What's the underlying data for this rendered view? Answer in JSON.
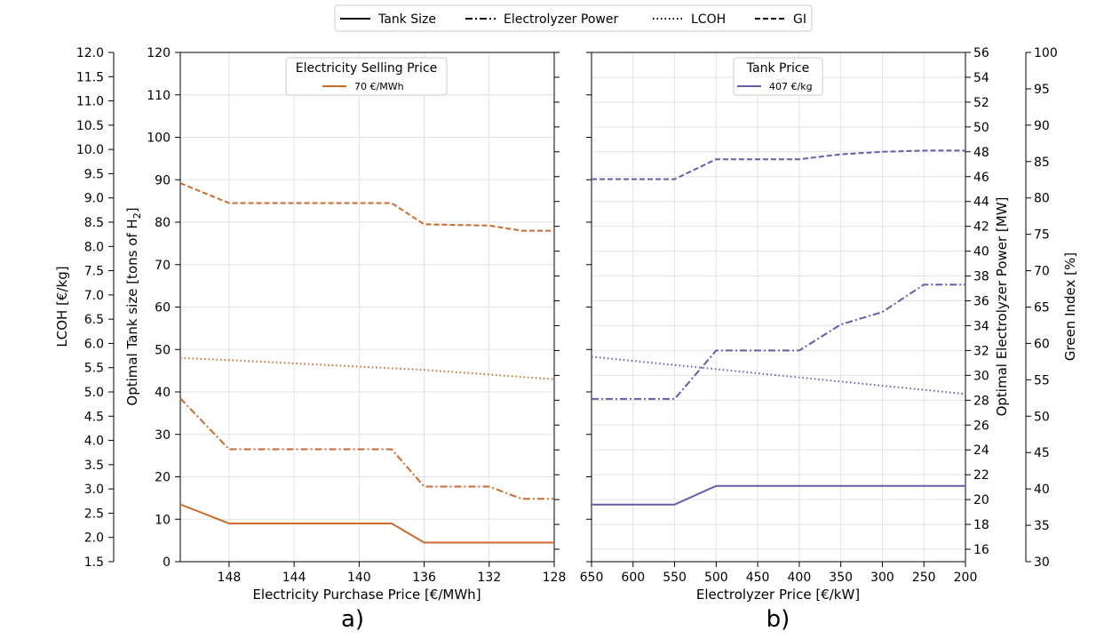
{
  "legend": {
    "items": [
      {
        "label": "Tank Size",
        "style": "solid"
      },
      {
        "label": "Electrolyzer Power",
        "style": "dashdot"
      },
      {
        "label": "LCOH",
        "style": "dotted"
      },
      {
        "label": "GI",
        "style": "dashed"
      }
    ]
  },
  "axes_text": {
    "lcoh_label": "LCOH [€/kg]",
    "tank_label_main": "Optimal Tank size [tons of H",
    "tank_label_sub": "2",
    "tank_label_end": "]",
    "power_label": "Optimal Electrolyzer Power [MW]",
    "gi_label": "Green Index [%]",
    "xlabel_a": "Electricity Purchase Price [€/MWh]",
    "xlabel_b": "Electrolyzer Price [€/kW]",
    "panel_a": "a)",
    "panel_b": "b)"
  },
  "insets": {
    "a": {
      "title": "Electricity Selling Price",
      "entry": "70 €/MWh"
    },
    "b": {
      "title": "Tank Price",
      "entry": "407 €/kg"
    }
  },
  "colors": {
    "panel_a": "#cc6a2c",
    "panel_b": "#6a5aaa",
    "grid": "#e3e3e3"
  },
  "chart_data": [
    {
      "type": "line",
      "panel": "a",
      "xlabel": "Electricity Purchase Price [€/MWh]",
      "x": [
        151,
        148,
        138,
        136,
        132,
        130,
        128
      ],
      "xlim": [
        151,
        128
      ],
      "xticks": [
        148,
        144,
        140,
        136,
        132,
        128
      ],
      "grid": true,
      "axes": {
        "lcoh": {
          "label": "LCOH [€/kg]",
          "lim": [
            1.5,
            12.0
          ],
          "ticks": [
            "1.5",
            "2.0",
            "2.5",
            "3.0",
            "3.5",
            "4.0",
            "4.5",
            "5.0",
            "5.5",
            "6.0",
            "6.5",
            "7.0",
            "7.5",
            "8.0",
            "8.5",
            "9.0",
            "9.5",
            "10.0",
            "10.5",
            "11.0",
            "11.5",
            "12.0"
          ]
        },
        "tank": {
          "label": "Optimal Tank size [tons of H2]",
          "lim": [
            0,
            120
          ],
          "ticks": [
            "0",
            "10",
            "20",
            "30",
            "40",
            "50",
            "60",
            "70",
            "80",
            "90",
            "100",
            "110",
            "120"
          ]
        }
      },
      "series": [
        {
          "name": "Tank Size",
          "axis": "tank",
          "style": "solid",
          "x": [
            151,
            148,
            138,
            136,
            128
          ],
          "values": [
            13.5,
            9,
            9,
            4.5,
            4.5
          ]
        },
        {
          "name": "Electrolyzer Power",
          "axis": "tank",
          "style": "dashdot",
          "x": [
            151,
            148,
            138,
            136,
            132,
            130,
            128
          ],
          "values": [
            38.5,
            26.5,
            26.5,
            17.7,
            17.7,
            14.8,
            14.8
          ]
        },
        {
          "name": "LCOH",
          "axis": "tank",
          "style": "dotted",
          "x": [
            151,
            148,
            136,
            128
          ],
          "values": [
            48,
            47.5,
            45.2,
            43
          ]
        },
        {
          "name": "GI",
          "axis": "tank",
          "style": "dashed",
          "x": [
            151,
            148,
            138,
            136,
            132,
            130,
            128
          ],
          "values": [
            89.2,
            84.5,
            84.5,
            79.5,
            79.2,
            78,
            78
          ]
        }
      ]
    },
    {
      "type": "line",
      "panel": "b",
      "xlabel": "Electrolyzer Price [€/kW]",
      "x": [
        650,
        600,
        550,
        500,
        450,
        400,
        350,
        300,
        250,
        200
      ],
      "xlim": [
        650,
        200
      ],
      "xticks": [
        650,
        600,
        550,
        500,
        450,
        400,
        350,
        300,
        250,
        200
      ],
      "grid": true,
      "axes": {
        "power": {
          "label": "Optimal Electrolyzer Power [MW]",
          "lim": [
            15,
            56
          ],
          "ticks": [
            "16",
            "18",
            "20",
            "22",
            "24",
            "26",
            "28",
            "30",
            "32",
            "34",
            "36",
            "38",
            "40",
            "42",
            "44",
            "46",
            "48",
            "50",
            "52",
            "54",
            "56"
          ]
        },
        "gi": {
          "label": "Green Index [%]",
          "lim": [
            30,
            100
          ],
          "ticks": [
            "30",
            "35",
            "40",
            "45",
            "50",
            "55",
            "60",
            "65",
            "70",
            "75",
            "80",
            "85",
            "90",
            "95",
            "100"
          ]
        }
      },
      "series": [
        {
          "name": "Tank Size",
          "axis": "power",
          "style": "solid",
          "x": [
            650,
            550,
            500,
            200
          ],
          "values": [
            19.6,
            19.6,
            21.1,
            21.1
          ]
        },
        {
          "name": "Electrolyzer Power",
          "axis": "power",
          "style": "dashdot",
          "x": [
            650,
            550,
            500,
            400,
            350,
            300,
            250,
            200
          ],
          "values": [
            28.1,
            28.1,
            32,
            32,
            34.1,
            35.1,
            37.3,
            37.3
          ]
        },
        {
          "name": "LCOH",
          "axis": "power",
          "style": "dotted",
          "x": [
            650,
            200
          ],
          "values": [
            31.5,
            28.5
          ]
        },
        {
          "name": "GI",
          "axis": "power",
          "style": "dashed",
          "x": [
            650,
            550,
            500,
            400,
            350,
            300,
            250,
            200
          ],
          "values": [
            45.8,
            45.8,
            47.4,
            47.4,
            47.8,
            48.0,
            48.1,
            48.1
          ]
        }
      ]
    }
  ]
}
